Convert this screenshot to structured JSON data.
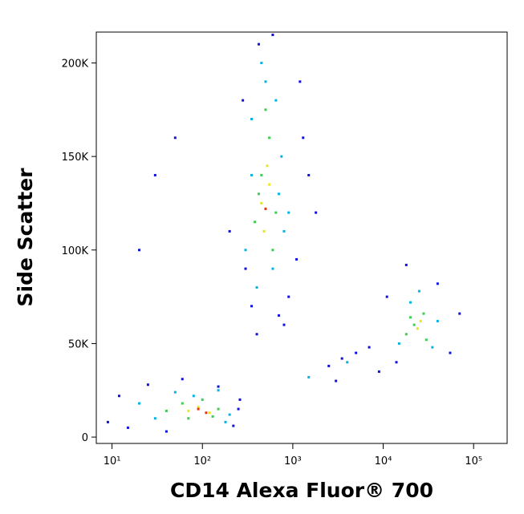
{
  "chart_data": {
    "type": "scatter",
    "x_label": "CD14 Alexa Fluor® 700",
    "y_label": "Side Scatter",
    "xscale": "log",
    "xlim": [
      6.7,
      235000
    ],
    "ylim": [
      -3400,
      216500
    ],
    "xticks": [
      {
        "value": 10,
        "label": "10¹"
      },
      {
        "value": 100,
        "label": "10²"
      },
      {
        "value": 1000,
        "label": "10³"
      },
      {
        "value": 10000,
        "label": "10⁴"
      },
      {
        "value": 100000,
        "label": "10⁵"
      }
    ],
    "yticks": [
      0,
      {
        "value": 50000,
        "label": "50K"
      },
      {
        "value": 100000,
        "label": "100K"
      },
      {
        "value": 150000,
        "label": "150K"
      },
      {
        "value": 200000,
        "label": "200K"
      }
    ],
    "series": [
      {
        "color": "#1010e0",
        "x": [
          9,
          12,
          15,
          25,
          40,
          60,
          150,
          220,
          260,
          280,
          300,
          350,
          420,
          700,
          900,
          1100,
          1300,
          1500,
          1800,
          2500,
          3500,
          5000,
          7000,
          9000,
          11000,
          14000,
          18000,
          40000,
          55000,
          30,
          200,
          600,
          800,
          400,
          1200,
          20,
          50,
          3000,
          70000,
          250
        ],
        "values": [
          8000,
          22000,
          5000,
          28000,
          3000,
          31000,
          27000,
          6000,
          20000,
          180000,
          90000,
          70000,
          210000,
          65000,
          75000,
          95000,
          160000,
          140000,
          120000,
          38000,
          42000,
          45000,
          48000,
          35000,
          75000,
          40000,
          92000,
          82000,
          45000,
          140000,
          110000,
          215000,
          60000,
          55000,
          190000,
          100000,
          160000,
          30000,
          66000,
          15000
        ]
      },
      {
        "color": "#00b4e6",
        "x": [
          30,
          50,
          80,
          150,
          200,
          300,
          350,
          450,
          600,
          750,
          800,
          400,
          500,
          650,
          15000,
          20000,
          35000,
          40000,
          25000,
          1500,
          4000,
          20,
          180,
          700,
          350,
          900
        ],
        "values": [
          10000,
          24000,
          22000,
          25000,
          12000,
          100000,
          170000,
          200000,
          90000,
          150000,
          110000,
          80000,
          190000,
          180000,
          50000,
          72000,
          48000,
          62000,
          78000,
          32000,
          40000,
          18000,
          8000,
          130000,
          140000,
          120000
        ]
      },
      {
        "color": "#3ccc50",
        "x": [
          40,
          60,
          100,
          150,
          70,
          130,
          380,
          450,
          550,
          600,
          420,
          500,
          650,
          18000,
          22000,
          30000,
          28000,
          20000
        ],
        "values": [
          14000,
          18000,
          20000,
          15000,
          10000,
          11000,
          115000,
          140000,
          160000,
          100000,
          130000,
          175000,
          120000,
          55000,
          60000,
          52000,
          66000,
          64000
        ]
      },
      {
        "color": "#e6e620",
        "x": [
          70,
          90,
          120,
          450,
          520,
          480,
          550,
          24000,
          26000
        ],
        "values": [
          14000,
          16000,
          13000,
          125000,
          145000,
          110000,
          135000,
          58000,
          62000
        ]
      },
      {
        "color": "#f03010",
        "x": [
          90,
          110,
          500
        ],
        "values": [
          15000,
          13000,
          122000
        ]
      }
    ]
  }
}
